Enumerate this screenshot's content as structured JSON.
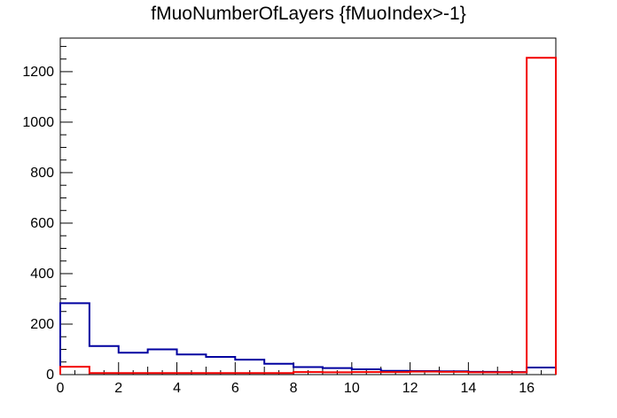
{
  "title": "fMuoNumberOfLayers {fMuoIndex>-1}",
  "colors": {
    "background": "#ffffff",
    "frame": "#000000",
    "text": "#000000",
    "blue_series": "#0000a0",
    "red_series": "#f20000"
  },
  "chart_data": {
    "type": "step-histogram",
    "title": "fMuoNumberOfLayers {fMuoIndex>-1}",
    "xlabel": "",
    "ylabel": "",
    "grid": false,
    "legend": "none",
    "x_range": [
      0,
      17
    ],
    "y_range": [
      0,
      1333
    ],
    "bins": {
      "start": 0,
      "width": 1,
      "count": 17
    },
    "x_tick_labels": [
      0,
      2,
      4,
      6,
      8,
      10,
      12,
      14,
      16
    ],
    "x_medium_tick_step": 1,
    "x_minor_tick_step": 0.5,
    "y_tick_labels": [
      0,
      200,
      400,
      600,
      800,
      1000,
      1200
    ],
    "y_minor_tick_step": 50,
    "series": [
      {
        "name": "blue-histogram",
        "color_key": "blue_series",
        "values": [
          283,
          113,
          87,
          100,
          80,
          70,
          59,
          43,
          30,
          26,
          21,
          15,
          14,
          13,
          11,
          10,
          28
        ]
      },
      {
        "name": "red-histogram",
        "color_key": "red_series",
        "values": [
          31,
          6,
          6,
          6,
          6,
          6,
          6,
          6,
          10,
          9,
          10,
          10,
          12,
          11,
          9,
          9,
          1255
        ]
      }
    ]
  }
}
